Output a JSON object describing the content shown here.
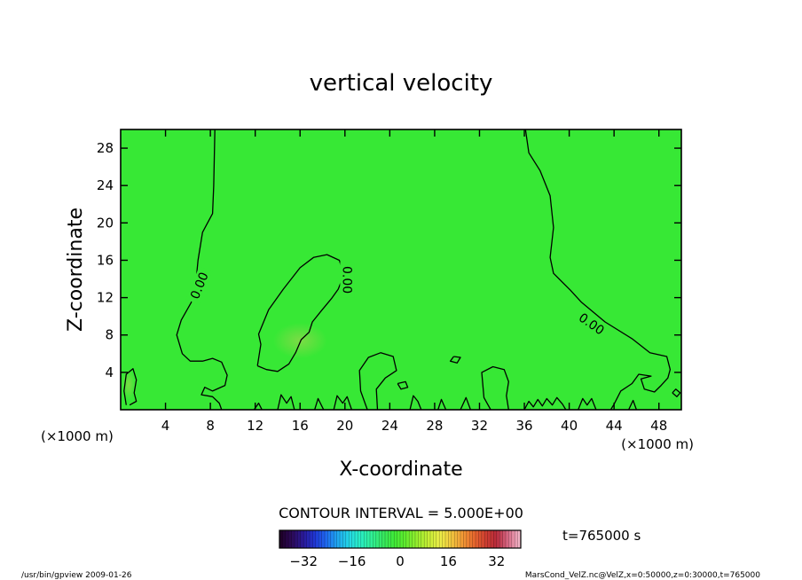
{
  "chart_data": {
    "type": "heatmap",
    "title": "vertical velocity",
    "xlabel": "X-coordinate",
    "ylabel": "Z-coordinate",
    "x_unit_left": "(×1000 m)",
    "x_unit_right": "(×1000 m)",
    "xlim": [
      0,
      50
    ],
    "ylim": [
      0,
      30
    ],
    "x_ticks": [
      4,
      8,
      12,
      16,
      20,
      24,
      28,
      32,
      36,
      40,
      44,
      48
    ],
    "y_ticks": [
      4,
      8,
      12,
      16,
      20,
      24,
      28
    ],
    "field_color": "#37e835",
    "contour_interval_text": "CONTOUR INTERVAL = 5.000E+00",
    "contour_labels": [
      {
        "text": "0.00",
        "x": 7.0,
        "z": 13.3,
        "angle": -68
      },
      {
        "text": "0.00",
        "x": 20.2,
        "z": 13.9,
        "angle": 90
      },
      {
        "text": "0.00",
        "x": 42.0,
        "z": 9.2,
        "angle": 35
      }
    ],
    "contours": [
      [
        [
          8.4,
          30
        ],
        [
          8.3,
          24
        ],
        [
          8.2,
          21
        ],
        [
          7.3,
          19
        ],
        [
          6.9,
          16
        ],
        [
          6.7,
          13.5
        ],
        [
          6.3,
          11.5
        ],
        [
          5.4,
          9.6
        ],
        [
          5.0,
          8.0
        ],
        [
          5.5,
          6.0
        ],
        [
          6.2,
          5.2
        ],
        [
          7.3,
          5.2
        ],
        [
          8.2,
          5.5
        ],
        [
          9.0,
          5.1
        ],
        [
          9.5,
          3.7
        ],
        [
          9.3,
          2.6
        ],
        [
          8.2,
          2.0
        ],
        [
          7.5,
          2.4
        ],
        [
          7.2,
          1.6
        ],
        [
          8.2,
          1.4
        ],
        [
          8.8,
          0.7
        ],
        [
          9.0,
          0
        ]
      ],
      [
        [
          11.9,
          0
        ],
        [
          12.3,
          0.7
        ],
        [
          12.6,
          0
        ]
      ],
      [
        [
          14.0,
          0
        ],
        [
          14.3,
          1.6
        ],
        [
          14.8,
          0.7
        ],
        [
          15.2,
          1.4
        ],
        [
          15.5,
          0
        ]
      ],
      [
        [
          17.3,
          0
        ],
        [
          17.6,
          1.2
        ],
        [
          18.1,
          0
        ]
      ],
      [
        [
          19.0,
          0
        ],
        [
          19.3,
          1.5
        ],
        [
          19.8,
          0.7
        ],
        [
          20.2,
          1.4
        ],
        [
          20.6,
          0
        ]
      ],
      [
        [
          22.0,
          0
        ],
        [
          21.4,
          2.0
        ],
        [
          21.3,
          4.2
        ],
        [
          22.1,
          5.6
        ],
        [
          23.2,
          6.1
        ],
        [
          24.3,
          5.7
        ],
        [
          24.6,
          4.2
        ],
        [
          23.6,
          3.4
        ],
        [
          22.8,
          2.2
        ],
        [
          22.9,
          0
        ]
      ],
      [
        [
          25.8,
          0
        ],
        [
          26.1,
          1.5
        ],
        [
          26.5,
          0.9
        ],
        [
          26.8,
          0
        ]
      ],
      [
        [
          28.3,
          0
        ],
        [
          28.6,
          1.1
        ],
        [
          29.0,
          0
        ]
      ],
      [
        [
          30.3,
          0
        ],
        [
          30.8,
          1.3
        ],
        [
          31.2,
          0
        ]
      ],
      [
        [
          33.0,
          0
        ],
        [
          32.4,
          1.3
        ],
        [
          32.2,
          4.0
        ],
        [
          33.2,
          4.6
        ],
        [
          34.2,
          4.3
        ],
        [
          34.6,
          3.0
        ],
        [
          34.4,
          1.5
        ],
        [
          34.6,
          0
        ]
      ],
      [
        [
          36.0,
          0
        ],
        [
          36.4,
          0.9
        ],
        [
          36.8,
          0.3
        ],
        [
          37.2,
          1.1
        ],
        [
          37.6,
          0.4
        ],
        [
          38.0,
          1.2
        ],
        [
          38.5,
          0.5
        ],
        [
          38.9,
          1.3
        ],
        [
          39.4,
          0.6
        ],
        [
          39.7,
          0
        ]
      ],
      [
        [
          40.8,
          0
        ],
        [
          41.2,
          1.2
        ],
        [
          41.6,
          0.5
        ],
        [
          42.0,
          1.2
        ],
        [
          42.4,
          0
        ]
      ],
      [
        [
          45.3,
          0
        ],
        [
          45.7,
          1.0
        ],
        [
          46.0,
          0
        ]
      ],
      [
        [
          36.1,
          30
        ],
        [
          36.4,
          27.5
        ],
        [
          37.4,
          25.6
        ],
        [
          38.3,
          22.9
        ],
        [
          38.6,
          19.5
        ],
        [
          38.3,
          16.3
        ],
        [
          38.6,
          14.6
        ],
        [
          40.1,
          12.8
        ],
        [
          41.1,
          11.5
        ],
        [
          43.2,
          9.4
        ],
        [
          45.6,
          7.6
        ],
        [
          47.2,
          6.1
        ],
        [
          48.7,
          5.7
        ],
        [
          49.0,
          4.3
        ],
        [
          48.8,
          3.4
        ],
        [
          48.2,
          2.6
        ],
        [
          47.6,
          1.9
        ],
        [
          46.7,
          2.2
        ],
        [
          46.4,
          3.3
        ],
        [
          47.3,
          3.6
        ],
        [
          46.2,
          3.8
        ],
        [
          45.6,
          2.8
        ],
        [
          44.6,
          2.0
        ],
        [
          44.0,
          0.6
        ],
        [
          43.7,
          0
        ]
      ],
      [
        [
          12.2,
          4.7
        ],
        [
          12.5,
          7.0
        ],
        [
          12.3,
          8.1
        ],
        [
          13.2,
          10.7
        ],
        [
          14.5,
          12.9
        ],
        [
          16.0,
          15.2
        ],
        [
          17.2,
          16.3
        ],
        [
          18.4,
          16.6
        ],
        [
          19.5,
          16.0
        ],
        [
          19.9,
          14.4
        ],
        [
          19.4,
          12.9
        ],
        [
          18.8,
          11.9
        ],
        [
          17.9,
          10.6
        ],
        [
          17.1,
          9.4
        ],
        [
          16.8,
          8.3
        ],
        [
          16.1,
          7.5
        ],
        [
          15.6,
          6.1
        ],
        [
          15.0,
          4.9
        ],
        [
          14.0,
          4.1
        ],
        [
          13.0,
          4.3
        ],
        [
          12.2,
          4.7
        ]
      ],
      [
        [
          29.7,
          5.7
        ],
        [
          29.4,
          5.2
        ],
        [
          30.0,
          5.0
        ],
        [
          30.3,
          5.6
        ],
        [
          29.7,
          5.7
        ]
      ],
      [
        [
          24.7,
          2.8
        ],
        [
          25.0,
          2.2
        ],
        [
          25.6,
          2.4
        ],
        [
          25.4,
          3.0
        ],
        [
          24.7,
          2.8
        ]
      ],
      [
        [
          49.2,
          1.8
        ],
        [
          49.6,
          1.4
        ],
        [
          49.9,
          1.8
        ],
        [
          49.5,
          2.2
        ],
        [
          49.2,
          1.8
        ]
      ],
      [
        [
          0.5,
          0.5
        ],
        [
          0.3,
          2.0
        ],
        [
          0.5,
          3.8
        ],
        [
          1.1,
          4.4
        ],
        [
          1.4,
          3.2
        ],
        [
          1.2,
          1.8
        ],
        [
          1.4,
          0.9
        ],
        [
          0.8,
          0.5
        ]
      ]
    ],
    "warm_spots": [
      {
        "x": 0.7,
        "z": 2.7,
        "rx": 0.6,
        "rz": 1.6
      },
      {
        "x": 16.0,
        "z": 7.4,
        "rx": 2.4,
        "rz": 1.9
      }
    ],
    "colorbar": {
      "ticks": [
        -32,
        -16,
        0,
        16,
        32
      ],
      "range": [
        -40,
        40
      ],
      "colors": [
        "#20002a",
        "#2c0a5a",
        "#2a1a9a",
        "#1f37d6",
        "#1f6af0",
        "#20a8f0",
        "#24d7e6",
        "#29eec4",
        "#30f096",
        "#37e860",
        "#3fea37",
        "#62ec2e",
        "#96ee2e",
        "#c6ee36",
        "#ecee48",
        "#f2c83e",
        "#f29a36",
        "#e86a2e",
        "#d04030",
        "#b82a3c",
        "#d86a86",
        "#f2b4c6"
      ]
    },
    "time_text": "t=765000 s"
  },
  "footer": {
    "left": "/usr/bin/gpview  2009-01-26",
    "right": "MarsCond_VelZ.nc@VelZ,x=0:50000,z=0:30000,t=765000"
  }
}
